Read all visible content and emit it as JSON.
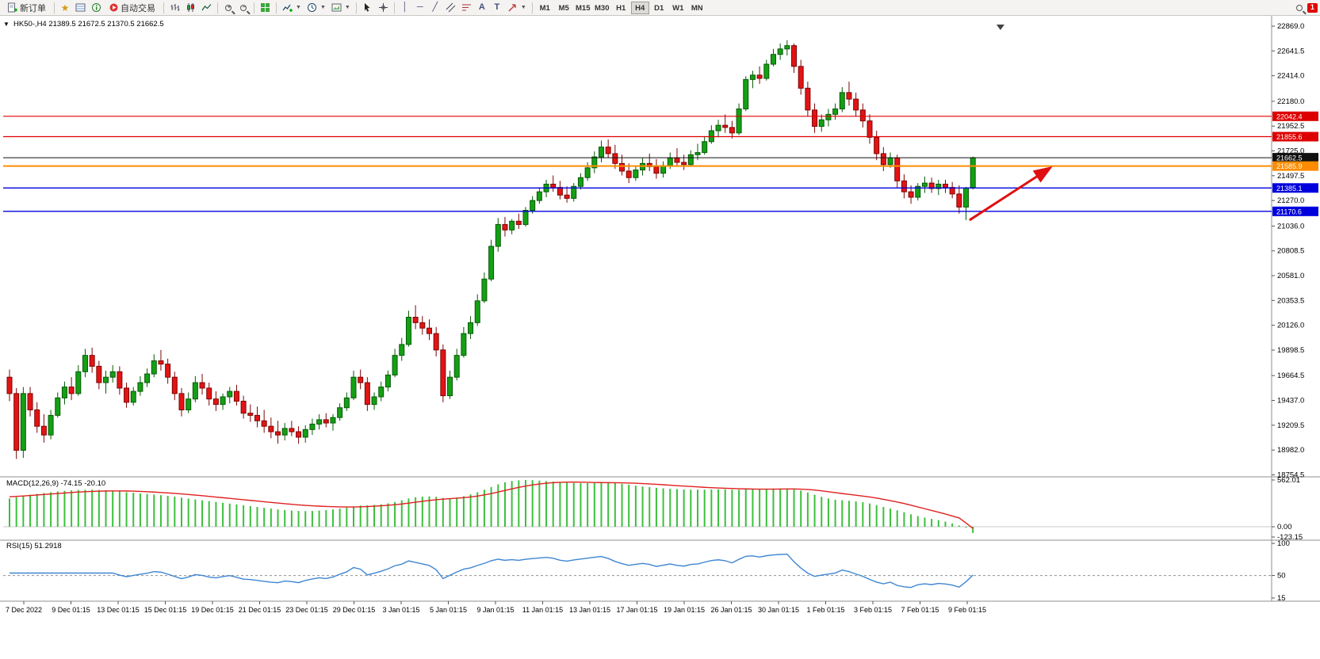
{
  "toolbar": {
    "new_order": "新订单",
    "autotrading": "自动交易",
    "timeframes": [
      "M1",
      "M5",
      "M15",
      "M30",
      "H1",
      "H4",
      "D1",
      "W1",
      "MN"
    ],
    "active_timeframe": "H4",
    "notification_badge": "1",
    "text_tool": "A",
    "label_tool": "T",
    "vline_tool": "│",
    "hline_tool": "─",
    "trendline_tool": "╱"
  },
  "chart": {
    "header": "HK50-,H4  21389.5 21672.5 21370.5 21662.5",
    "one_click_marker": "▼"
  },
  "chart_data": {
    "type": "candlestick",
    "symbol": "HK50-",
    "timeframe": "H4",
    "last_ohlc": {
      "open": 21389.5,
      "high": 21672.5,
      "low": 21370.5,
      "close": 21662.5
    },
    "price_axis_range": [
      18754.5,
      22869.0
    ],
    "price_axis_labels": [
      "22869.0",
      "22641.5",
      "22414.0",
      "22180.0",
      "21952.5",
      "21725.0",
      "21497.5",
      "21270.0",
      "21036.0",
      "20808.5",
      "20581.0",
      "20353.5",
      "20126.0",
      "19898.5",
      "19664.5",
      "19437.0",
      "19209.5",
      "18982.0",
      "18754.5"
    ],
    "time_axis_labels": [
      "7 Dec 2022",
      "9 Dec 01:15",
      "13 Dec 01:15",
      "15 Dec 01:15",
      "19 Dec 01:15",
      "21 Dec 01:15",
      "23 Dec 01:15",
      "29 Dec 01:15",
      "3 Jan 01:15",
      "5 Jan 01:15",
      "9 Jan 01:15",
      "11 Jan 01:15",
      "13 Jan 01:15",
      "17 Jan 01:15",
      "19 Jan 01:15",
      "26 Jan 01:15",
      "30 Jan 01:15",
      "1 Feb 01:15",
      "3 Feb 01:15",
      "7 Feb 01:15",
      "9 Feb 01:15"
    ],
    "grid": false,
    "legend_position": "none",
    "colors": {
      "up": "#14a014",
      "up_stroke": "#075a07",
      "down": "#e31414",
      "down_stroke": "#7d0505",
      "macd_hist": "#3cc03c",
      "macd_signal": "#e02020",
      "rsi_line": "#3f86d2",
      "level_red": "#dd0000",
      "level_blue": "#0000dd",
      "level_orange": "#ff8c00",
      "bid": "#111111"
    },
    "levels": [
      {
        "value": 22042.4,
        "label": "22042.4",
        "color": "#dd0000",
        "width": 1.2,
        "name": "resistance-upper"
      },
      {
        "value": 21855.6,
        "label": "21855.6",
        "color": "#dd0000",
        "width": 1.2,
        "name": "resistance-lower"
      },
      {
        "value": 21662.5,
        "label": "21662.5",
        "color": "#111111",
        "width": 1,
        "name": "bid-price-line"
      },
      {
        "value": 21585.9,
        "label": "21585.9",
        "color": "#ff8c00",
        "width": 2,
        "name": "pivot-line"
      },
      {
        "value": 21385.1,
        "label": "21385.1",
        "color": "#0000dd",
        "width": 1.4,
        "name": "support-upper"
      },
      {
        "value": 21170.6,
        "label": "21170.6",
        "color": "#0000dd",
        "width": 1.4,
        "name": "support-lower"
      }
    ],
    "annotations": [
      {
        "type": "arrow",
        "from_bar": 139.5,
        "from_price": 21090,
        "to_bar": 151,
        "to_price": 21560,
        "color": "#e01010",
        "width": 3
      }
    ],
    "shift_marker_bar": 144,
    "candles": [
      [
        19650,
        19720,
        19430,
        19500
      ],
      [
        19500,
        19550,
        18900,
        18980
      ],
      [
        18980,
        19560,
        18910,
        19500
      ],
      [
        19500,
        19560,
        19290,
        19350
      ],
      [
        19350,
        19420,
        19140,
        19200
      ],
      [
        19200,
        19310,
        19050,
        19120
      ],
      [
        19120,
        19350,
        19080,
        19300
      ],
      [
        19300,
        19510,
        19280,
        19460
      ],
      [
        19460,
        19610,
        19400,
        19560
      ],
      [
        19560,
        19650,
        19440,
        19500
      ],
      [
        19500,
        19760,
        19480,
        19700
      ],
      [
        19700,
        19910,
        19650,
        19850
      ],
      [
        19850,
        19920,
        19690,
        19750
      ],
      [
        19750,
        19800,
        19540,
        19600
      ],
      [
        19600,
        19710,
        19500,
        19650
      ],
      [
        19650,
        19760,
        19600,
        19700
      ],
      [
        19700,
        19750,
        19490,
        19550
      ],
      [
        19550,
        19600,
        19370,
        19420
      ],
      [
        19420,
        19560,
        19390,
        19520
      ],
      [
        19520,
        19660,
        19480,
        19600
      ],
      [
        19600,
        19730,
        19560,
        19680
      ],
      [
        19680,
        19860,
        19650,
        19800
      ],
      [
        19800,
        19900,
        19710,
        19770
      ],
      [
        19770,
        19820,
        19590,
        19650
      ],
      [
        19650,
        19700,
        19440,
        19500
      ],
      [
        19500,
        19550,
        19290,
        19350
      ],
      [
        19350,
        19510,
        19320,
        19450
      ],
      [
        19450,
        19660,
        19420,
        19600
      ],
      [
        19600,
        19680,
        19490,
        19550
      ],
      [
        19550,
        19600,
        19390,
        19450
      ],
      [
        19450,
        19520,
        19340,
        19400
      ],
      [
        19400,
        19500,
        19350,
        19470
      ],
      [
        19470,
        19560,
        19410,
        19520
      ],
      [
        19520,
        19580,
        19390,
        19430
      ],
      [
        19430,
        19480,
        19270,
        19320
      ],
      [
        19320,
        19400,
        19240,
        19300
      ],
      [
        19300,
        19380,
        19190,
        19250
      ],
      [
        19250,
        19350,
        19140,
        19200
      ],
      [
        19200,
        19280,
        19090,
        19150
      ],
      [
        19150,
        19250,
        19040,
        19120
      ],
      [
        19120,
        19230,
        19070,
        19180
      ],
      [
        19180,
        19250,
        19110,
        19150
      ],
      [
        19150,
        19200,
        19040,
        19100
      ],
      [
        19100,
        19210,
        19050,
        19170
      ],
      [
        19170,
        19270,
        19120,
        19220
      ],
      [
        19220,
        19310,
        19170,
        19260
      ],
      [
        19260,
        19320,
        19190,
        19230
      ],
      [
        19230,
        19310,
        19160,
        19280
      ],
      [
        19280,
        19410,
        19250,
        19370
      ],
      [
        19370,
        19510,
        19340,
        19460
      ],
      [
        19460,
        19710,
        19440,
        19650
      ],
      [
        19650,
        19720,
        19540,
        19600
      ],
      [
        19600,
        19650,
        19340,
        19400
      ],
      [
        19400,
        19510,
        19350,
        19470
      ],
      [
        19470,
        19610,
        19430,
        19560
      ],
      [
        19560,
        19710,
        19520,
        19670
      ],
      [
        19670,
        19910,
        19650,
        19850
      ],
      [
        19850,
        20010,
        19800,
        19950
      ],
      [
        19950,
        20260,
        19930,
        20200
      ],
      [
        20200,
        20310,
        20090,
        20150
      ],
      [
        20150,
        20210,
        20040,
        20100
      ],
      [
        20100,
        20180,
        19990,
        20050
      ],
      [
        20050,
        20110,
        19840,
        19900
      ],
      [
        19900,
        19950,
        19420,
        19480
      ],
      [
        19480,
        19710,
        19450,
        19650
      ],
      [
        19650,
        19910,
        19620,
        19850
      ],
      [
        19850,
        20110,
        19830,
        20050
      ],
      [
        20050,
        20210,
        20000,
        20150
      ],
      [
        20150,
        20410,
        20120,
        20350
      ],
      [
        20350,
        20610,
        20330,
        20550
      ],
      [
        20550,
        20910,
        20530,
        20850
      ],
      [
        20850,
        21110,
        20800,
        21050
      ],
      [
        21050,
        21120,
        20940,
        21000
      ],
      [
        21000,
        21100,
        20960,
        21080
      ],
      [
        21080,
        21150,
        21010,
        21050
      ],
      [
        21050,
        21210,
        21030,
        21180
      ],
      [
        21180,
        21310,
        21150,
        21270
      ],
      [
        21270,
        21390,
        21240,
        21350
      ],
      [
        21350,
        21460,
        21300,
        21420
      ],
      [
        21420,
        21500,
        21350,
        21390
      ],
      [
        21390,
        21450,
        21280,
        21320
      ],
      [
        21320,
        21400,
        21250,
        21290
      ],
      [
        21290,
        21430,
        21260,
        21400
      ],
      [
        21400,
        21520,
        21370,
        21480
      ],
      [
        21480,
        21620,
        21450,
        21570
      ],
      [
        21570,
        21720,
        21520,
        21670
      ],
      [
        21670,
        21820,
        21620,
        21760
      ],
      [
        21760,
        21830,
        21660,
        21700
      ],
      [
        21700,
        21780,
        21560,
        21610
      ],
      [
        21610,
        21690,
        21500,
        21540
      ],
      [
        21540,
        21610,
        21430,
        21480
      ],
      [
        21480,
        21590,
        21450,
        21550
      ],
      [
        21550,
        21660,
        21500,
        21610
      ],
      [
        21610,
        21700,
        21540,
        21580
      ],
      [
        21580,
        21650,
        21470,
        21520
      ],
      [
        21520,
        21630,
        21480,
        21590
      ],
      [
        21590,
        21710,
        21560,
        21660
      ],
      [
        21660,
        21750,
        21590,
        21620
      ],
      [
        21620,
        21690,
        21550,
        21600
      ],
      [
        21600,
        21730,
        21580,
        21690
      ],
      [
        21690,
        21790,
        21640,
        21710
      ],
      [
        21710,
        21860,
        21690,
        21810
      ],
      [
        21810,
        21960,
        21790,
        21910
      ],
      [
        21910,
        22010,
        21850,
        21960
      ],
      [
        21960,
        22060,
        21890,
        21940
      ],
      [
        21940,
        22000,
        21840,
        21890
      ],
      [
        21890,
        22160,
        21870,
        22110
      ],
      [
        22110,
        22410,
        22090,
        22380
      ],
      [
        22380,
        22460,
        22300,
        22420
      ],
      [
        22420,
        22500,
        22340,
        22390
      ],
      [
        22390,
        22560,
        22370,
        22520
      ],
      [
        22520,
        22660,
        22500,
        22610
      ],
      [
        22610,
        22710,
        22560,
        22660
      ],
      [
        22660,
        22740,
        22600,
        22690
      ],
      [
        22690,
        22710,
        22440,
        22500
      ],
      [
        22500,
        22560,
        22240,
        22300
      ],
      [
        22300,
        22360,
        22040,
        22100
      ],
      [
        22100,
        22160,
        21890,
        21950
      ],
      [
        21950,
        22060,
        21900,
        22010
      ],
      [
        22010,
        22110,
        21950,
        22060
      ],
      [
        22060,
        22160,
        22010,
        22110
      ],
      [
        22110,
        22310,
        22080,
        22260
      ],
      [
        22260,
        22360,
        22140,
        22200
      ],
      [
        22200,
        22260,
        22040,
        22100
      ],
      [
        22100,
        22160,
        21940,
        22000
      ],
      [
        22000,
        22060,
        21790,
        21850
      ],
      [
        21850,
        21910,
        21640,
        21700
      ],
      [
        21700,
        21760,
        21540,
        21600
      ],
      [
        21600,
        21710,
        21570,
        21660
      ],
      [
        21660,
        21690,
        21390,
        21450
      ],
      [
        21450,
        21510,
        21290,
        21350
      ],
      [
        21350,
        21410,
        21240,
        21300
      ],
      [
        21300,
        21430,
        21270,
        21400
      ],
      [
        21400,
        21490,
        21340,
        21430
      ],
      [
        21430,
        21480,
        21340,
        21380
      ],
      [
        21380,
        21460,
        21320,
        21420
      ],
      [
        21420,
        21460,
        21340,
        21390
      ],
      [
        21390,
        21440,
        21290,
        21330
      ],
      [
        21330,
        21410,
        21150,
        21210
      ],
      [
        21210,
        21395,
        21090,
        21385
      ],
      [
        21389.5,
        21672.5,
        21370.5,
        21662.5
      ]
    ],
    "macd": {
      "title": "MACD(12,26,9) -74.15 -20.10",
      "params": [
        12,
        26,
        9
      ],
      "current": [
        -74.15,
        -20.1
      ],
      "axis_labels": [
        "562.01",
        "0.00",
        "-123.15"
      ],
      "range": [
        -123.15,
        562.01
      ],
      "histogram": [
        340,
        355,
        370,
        385,
        395,
        405,
        415,
        425,
        432,
        438,
        442,
        445,
        445,
        442,
        438,
        432,
        425,
        415,
        408,
        400,
        394,
        388,
        380,
        372,
        362,
        350,
        338,
        328,
        318,
        308,
        298,
        288,
        278,
        268,
        258,
        248,
        238,
        228,
        218,
        208,
        200,
        195,
        190,
        188,
        190,
        195,
        200,
        208,
        218,
        230,
        245,
        255,
        258,
        262,
        270,
        282,
        298,
        318,
        340,
        355,
        362,
        365,
        360,
        345,
        340,
        350,
        368,
        390,
        415,
        445,
        478,
        510,
        535,
        550,
        558,
        562,
        560,
        555,
        548,
        542,
        536,
        530,
        526,
        524,
        524,
        526,
        528,
        528,
        524,
        516,
        505,
        494,
        484,
        476,
        468,
        462,
        456,
        452,
        448,
        446,
        445,
        446,
        448,
        450,
        450,
        446,
        445,
        448,
        452,
        455,
        458,
        460,
        460,
        458,
        450,
        435,
        412,
        385,
        360,
        340,
        325,
        318,
        312,
        305,
        295,
        280,
        260,
        238,
        218,
        198,
        175,
        150,
        128,
        110,
        95,
        80,
        62,
        40,
        15,
        -10,
        -74.15
      ],
      "signal": [
        360,
        365,
        370,
        376,
        382,
        388,
        394,
        400,
        406,
        412,
        417,
        421,
        425,
        428,
        430,
        431,
        431,
        430,
        428,
        425,
        421,
        417,
        412,
        407,
        401,
        395,
        388,
        381,
        373,
        365,
        357,
        349,
        341,
        333,
        325,
        317,
        309,
        301,
        293,
        285,
        277,
        270,
        263,
        257,
        252,
        248,
        244,
        241,
        239,
        238,
        238,
        240,
        243,
        247,
        252,
        258,
        265,
        274,
        284,
        295,
        306,
        316,
        325,
        332,
        338,
        344,
        350,
        358,
        369,
        383,
        398,
        417,
        437,
        456,
        473,
        489,
        503,
        514,
        523,
        530,
        534,
        536,
        537,
        536,
        534,
        532,
        531,
        530,
        529,
        528,
        526,
        523,
        519,
        515,
        510,
        505,
        500,
        494,
        489,
        484,
        479,
        474,
        470,
        466,
        463,
        460,
        457,
        455,
        453,
        452,
        452,
        452,
        453,
        454,
        454,
        452,
        448,
        441,
        432,
        421,
        410,
        399,
        389,
        379,
        369,
        358,
        345,
        330,
        314,
        297,
        279,
        259,
        238,
        217,
        196,
        175,
        153,
        130,
        106,
        45,
        -20.1
      ]
    },
    "rsi": {
      "title": "RSI(15) 51.2918",
      "period": 15,
      "current": 51.2918,
      "axis_labels": [
        "100",
        "50",
        "15"
      ],
      "range": [
        15,
        100
      ],
      "level_line": 50
    }
  }
}
